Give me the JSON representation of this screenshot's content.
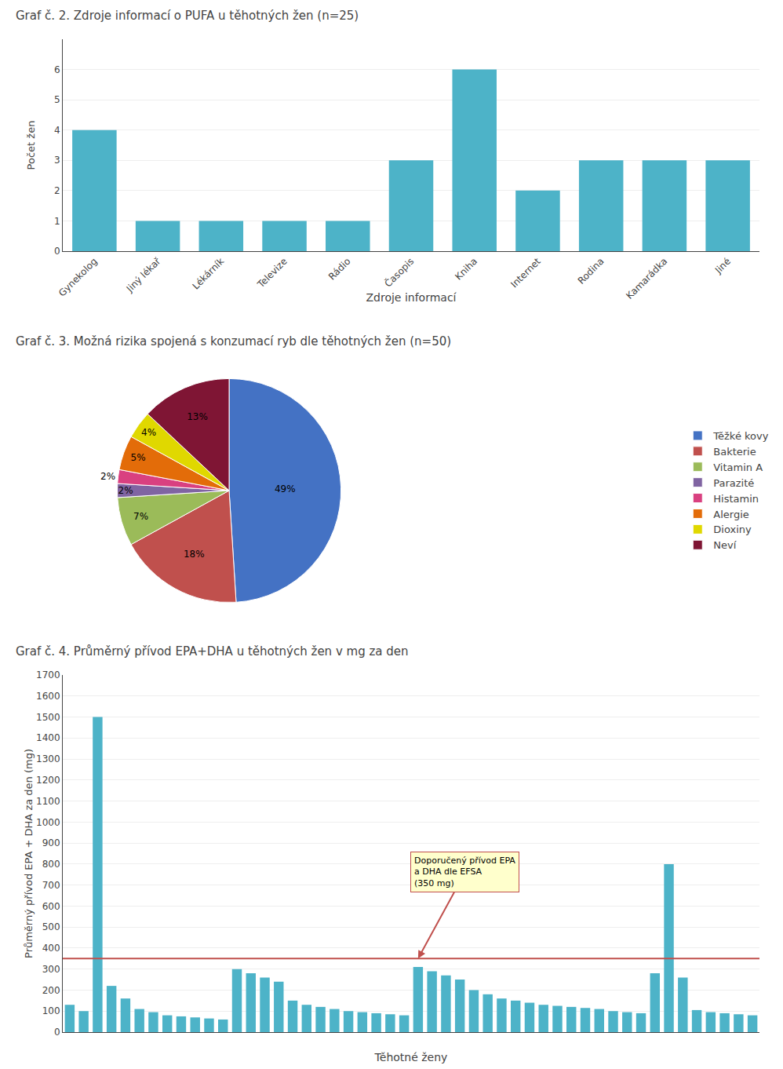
{
  "chart_data": [
    {
      "type": "bar",
      "title": "Graf č. 2. Zdroje informací o PUFA u těhotných žen (n=25)",
      "xlabel": "Zdroje informací",
      "ylabel": "Počet žen",
      "categories": [
        "Gynekolog",
        "Jiný lékař",
        "Lékárník",
        "Televize",
        "Rádio",
        "Časopis",
        "Kniha",
        "Internet",
        "Rodina",
        "Kamarádka",
        "Jiné"
      ],
      "values": [
        4,
        1,
        1,
        1,
        1,
        3,
        6,
        2,
        3,
        3,
        3
      ],
      "color": "#4db3c8",
      "ylim": [
        0,
        7
      ],
      "yticks": [
        0,
        1,
        2,
        3,
        4,
        5,
        6
      ],
      "grid": true
    },
    {
      "type": "pie",
      "title": "Graf č. 3. Možná rizika spojená s konzumací ryb dle těhotných žen (n=50)",
      "categories": [
        "Těžké kovy",
        "Bakterie",
        "Vitamin A",
        "Parazité",
        "Histamin",
        "Alergie",
        "Dioxiny",
        "Neví"
      ],
      "values": [
        49,
        18,
        7,
        2,
        2,
        5,
        4,
        13
      ],
      "value_labels": [
        "49%",
        "18%",
        "7%",
        "2%",
        "2%",
        "5%",
        "4%",
        "13%"
      ],
      "colors": [
        "#4472c4",
        "#c0504d",
        "#9bbb59",
        "#8064a2",
        "#d94080",
        "#e36c09",
        "#e0d800",
        "#7f1534"
      ],
      "data_labels": true,
      "legend": "right"
    },
    {
      "type": "bar",
      "title": "Graf č. 4. Průměrný přívod EPA+DHA u těhotných žen v mg za den",
      "xlabel": "Těhotné ženy",
      "ylabel": "Průměrný přívod EPA + DHA za den (mg)",
      "categories": [
        null,
        null,
        null,
        null,
        null,
        null,
        null,
        null,
        null,
        null,
        null,
        null,
        null,
        null,
        null,
        null,
        null,
        null,
        null,
        null,
        null,
        null,
        null,
        null,
        null,
        null,
        null,
        null,
        null,
        null,
        null,
        null,
        null,
        null,
        null,
        null,
        null,
        null,
        null,
        null,
        null,
        null,
        null,
        null,
        null,
        null,
        null,
        null,
        null,
        null
      ],
      "values": [
        130,
        100,
        1500,
        220,
        160,
        110,
        95,
        80,
        75,
        70,
        65,
        60,
        300,
        280,
        260,
        240,
        150,
        130,
        120,
        110,
        100,
        95,
        90,
        85,
        80,
        310,
        290,
        270,
        250,
        200,
        180,
        160,
        150,
        140,
        130,
        125,
        120,
        115,
        110,
        100,
        95,
        90,
        280,
        800,
        260,
        105,
        95,
        90,
        85,
        80
      ],
      "color": "#4db3c8",
      "ylim": [
        0,
        1700
      ],
      "yticks": [
        0,
        100,
        200,
        300,
        400,
        500,
        600,
        700,
        800,
        900,
        1000,
        1100,
        1200,
        1300,
        1400,
        1500,
        1600,
        1700
      ],
      "grid": true,
      "tick_labels": "y",
      "reference_line": {
        "value": 350,
        "color": "#c0504d",
        "label": "Doporučený přívod EPA\na DHA dle EFSA\n(350 mg)"
      }
    }
  ]
}
